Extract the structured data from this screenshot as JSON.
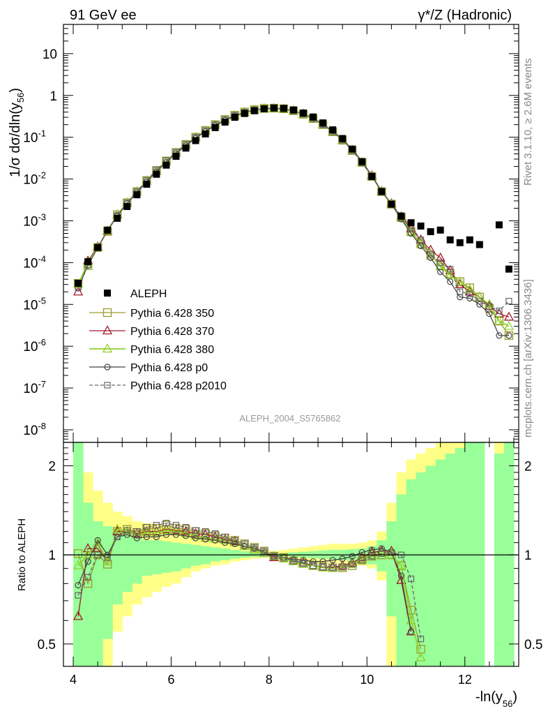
{
  "header": {
    "left": "91 GeV ee",
    "right": "γ*/Z (Hadronic)"
  },
  "side": {
    "rivet": "Rivet 3.1.10, ≥ 2.6M events",
    "mcplots": "mcplots.cern.ch [arXiv:1306.3436]"
  },
  "watermark": "ALEPH_2004_S5765862",
  "colors": {
    "aleph": "#000000",
    "p350": "#9a9a2b",
    "p370": "#a01a2a",
    "p380": "#8ed12b",
    "p0": "#444444",
    "p2010": "#666666",
    "band_inner": "#99ff99",
    "band_outer": "#ffff88"
  },
  "chart_data": [
    {
      "type": "scatter",
      "title": "",
      "ylabel_main": "1/σ  dσ/dln(y",
      "ylabel_sub": "56",
      "ylabel_close": ")",
      "xlim": [
        3.8,
        13.1
      ],
      "ylim": [
        5e-09,
        50
      ],
      "yscale": "log",
      "yticks": [
        {
          "v": 1e-08,
          "base": "10",
          "exp": "-8"
        },
        {
          "v": 1e-07,
          "base": "10",
          "exp": "-7"
        },
        {
          "v": 1e-06,
          "base": "10",
          "exp": "-6"
        },
        {
          "v": 1e-05,
          "base": "10",
          "exp": "-5"
        },
        {
          "v": 0.0001,
          "base": "10",
          "exp": "-4"
        },
        {
          "v": 0.001,
          "base": "10",
          "exp": "-3"
        },
        {
          "v": 0.01,
          "base": "10",
          "exp": "-2"
        },
        {
          "v": 0.1,
          "base": "10",
          "exp": "-1"
        },
        {
          "v": 1,
          "base": "1",
          "exp": ""
        },
        {
          "v": 10,
          "base": "10",
          "exp": ""
        }
      ],
      "legend_position": "lower-left",
      "legend": [
        {
          "key": "aleph",
          "label": "ALEPH"
        },
        {
          "key": "p350",
          "label": "Pythia 6.428 350"
        },
        {
          "key": "p370",
          "label": "Pythia 6.428 370"
        },
        {
          "key": "p380",
          "label": "Pythia 6.428 380"
        },
        {
          "key": "p0",
          "label": "Pythia 6.428 p0"
        },
        {
          "key": "p2010",
          "label": "Pythia 6.428 p2010"
        }
      ],
      "x": [
        4.1,
        4.3,
        4.5,
        4.7,
        4.9,
        5.1,
        5.3,
        5.5,
        5.7,
        5.9,
        6.1,
        6.3,
        6.5,
        6.7,
        6.9,
        7.1,
        7.3,
        7.5,
        7.7,
        7.9,
        8.1,
        8.3,
        8.5,
        8.7,
        8.9,
        9.1,
        9.3,
        9.5,
        9.7,
        9.9,
        10.1,
        10.3,
        10.5,
        10.7,
        10.9,
        11.1,
        11.3,
        11.5,
        11.7,
        11.9,
        12.1,
        12.3,
        12.5,
        12.7,
        12.9
      ],
      "aleph": [
        3.2e-05,
        0.000105,
        0.00023,
        0.0006,
        0.00115,
        0.0022,
        0.0042,
        0.0075,
        0.013,
        0.0215,
        0.035,
        0.055,
        0.083,
        0.12,
        0.17,
        0.23,
        0.3,
        0.37,
        0.43,
        0.48,
        0.5,
        0.49,
        0.45,
        0.38,
        0.305,
        0.22,
        0.15,
        0.093,
        0.052,
        0.026,
        0.0115,
        0.005,
        0.0025,
        0.0013,
        0.0009,
        0.00075,
        0.00055,
        0.0006,
        0.00035,
        0.0003,
        0.00035,
        0.00027,
        null,
        0.0008,
        7e-05
      ],
      "series": [
        {
          "key": "p350",
          "marker": "square",
          "dash": false,
          "values": [
            3.2e-05,
            8.5e-05,
            0.00023,
            0.00056,
            0.0014,
            0.0027,
            0.005,
            0.0092,
            0.016,
            0.027,
            0.043,
            0.067,
            0.1,
            0.145,
            0.2,
            0.265,
            0.335,
            0.4,
            0.455,
            0.49,
            0.495,
            0.48,
            0.43,
            0.355,
            0.28,
            0.2,
            0.135,
            0.085,
            0.048,
            0.025,
            0.0115,
            0.005,
            0.0025,
            0.0012,
            0.00055,
            0.00028,
            0.00015,
            8.5e-05,
            5.5e-05,
            3.5e-05,
            2.5e-05,
            1.5e-05,
            8e-06,
            4e-06,
            1.8e-06
          ]
        },
        {
          "key": "p370",
          "marker": "triangle",
          "dash": false,
          "values": [
            2e-05,
            0.00011,
            0.00024,
            0.00057,
            0.0014,
            0.0027,
            0.005,
            0.009,
            0.0155,
            0.026,
            0.042,
            0.065,
            0.098,
            0.14,
            0.195,
            0.26,
            0.33,
            0.395,
            0.45,
            0.485,
            0.49,
            0.475,
            0.43,
            0.36,
            0.28,
            0.2,
            0.135,
            0.086,
            0.049,
            0.025,
            0.012,
            0.0051,
            0.0026,
            0.00125,
            0.00065,
            0.00035,
            0.0002,
            0.00013,
            6.5e-05,
            3e-05,
            2e-05,
            1.5e-05,
            9e-06,
            6e-06,
            5e-06
          ]
        },
        {
          "key": "p380",
          "marker": "triangle",
          "dash": false,
          "values": [
            3e-05,
            0.0001,
            0.00023,
            0.00058,
            0.0014,
            0.0027,
            0.005,
            0.009,
            0.0155,
            0.026,
            0.042,
            0.064,
            0.097,
            0.14,
            0.195,
            0.26,
            0.33,
            0.395,
            0.45,
            0.485,
            0.49,
            0.475,
            0.43,
            0.355,
            0.28,
            0.2,
            0.135,
            0.086,
            0.049,
            0.025,
            0.0115,
            0.005,
            0.0025,
            0.0012,
            0.00055,
            0.0003,
            0.00016,
            8e-05,
            5e-05,
            3.5e-05,
            2.3e-05,
            1.5e-05,
            1e-05,
            4e-06,
            3e-06
          ]
        },
        {
          "key": "p0",
          "marker": "circle",
          "dash": false,
          "values": [
            2.5e-05,
            8.5e-05,
            0.00023,
            0.00058,
            0.0013,
            0.0026,
            0.0047,
            0.0086,
            0.015,
            0.025,
            0.041,
            0.063,
            0.095,
            0.138,
            0.19,
            0.255,
            0.325,
            0.39,
            0.445,
            0.48,
            0.49,
            0.475,
            0.43,
            0.36,
            0.285,
            0.205,
            0.14,
            0.089,
            0.051,
            0.0265,
            0.012,
            0.0051,
            0.0025,
            0.0011,
            0.0005,
            0.00025,
            0.00013,
            6e-05,
            3.5e-05,
            1.5e-05,
            1.4e-05,
            1e-05,
            6e-06,
            1.8e-06,
            1.8e-06
          ]
        },
        {
          "key": "p2010",
          "marker": "square-small",
          "dash": true,
          "values": [
            2.5e-05,
            8.8e-05,
            0.00023,
            0.00058,
            0.00135,
            0.0027,
            0.005,
            0.0093,
            0.0165,
            0.0275,
            0.044,
            0.068,
            0.1,
            0.145,
            0.2,
            0.265,
            0.335,
            0.4,
            0.455,
            0.485,
            0.495,
            0.48,
            0.43,
            0.355,
            0.28,
            0.2,
            0.135,
            0.086,
            0.048,
            0.0245,
            0.0115,
            0.005,
            0.00255,
            0.0013,
            0.00075,
            0.00035,
            0.00016,
            0.0001,
            7e-05,
            2e-05,
            1.8e-05,
            1.2e-05,
            9e-06,
            7e-06,
            1.2e-05
          ]
        }
      ]
    },
    {
      "type": "scatter",
      "ylabel": "Ratio to ALEPH",
      "xlabel": "-ln(y",
      "xlabel_sub": "56",
      "xlabel_close": ")",
      "xlim": [
        3.8,
        13.1
      ],
      "ylim": [
        0.42,
        2.4
      ],
      "yscale": "log",
      "reference_line": 1,
      "xticks": [
        "4",
        "6",
        "8",
        "10",
        "12"
      ],
      "yticks": [
        "0.5",
        "1",
        "2"
      ],
      "band_edges": [
        4.0,
        4.2,
        4.4,
        4.6,
        4.8,
        5.0,
        5.2,
        5.4,
        5.6,
        5.8,
        6.0,
        6.2,
        6.4,
        6.6,
        6.8,
        7.0,
        7.2,
        7.4,
        7.6,
        7.8,
        8.0,
        8.2,
        8.4,
        8.6,
        8.8,
        9.0,
        9.2,
        9.4,
        9.6,
        9.8,
        10.0,
        10.2,
        10.4,
        10.6,
        10.8,
        11.0,
        11.2,
        11.4,
        11.6,
        11.8,
        12.0,
        12.2,
        12.4,
        12.6,
        12.8,
        13.0
      ],
      "band_outer": [
        [
          0.42,
          2.4
        ],
        [
          0.42,
          1.9
        ],
        [
          0.42,
          1.65
        ],
        [
          0.42,
          1.5
        ],
        [
          0.55,
          1.4
        ],
        [
          0.62,
          1.35
        ],
        [
          0.68,
          1.3
        ],
        [
          0.72,
          1.28
        ],
        [
          0.75,
          1.26
        ],
        [
          0.78,
          1.24
        ],
        [
          0.8,
          1.23
        ],
        [
          0.84,
          1.2
        ],
        [
          0.88,
          1.16
        ],
        [
          0.9,
          1.14
        ],
        [
          0.92,
          1.12
        ],
        [
          0.93,
          1.1
        ],
        [
          0.95,
          1.08
        ],
        [
          0.96,
          1.07
        ],
        [
          0.97,
          1.05
        ],
        [
          0.98,
          1.04
        ],
        [
          0.98,
          1.03
        ],
        [
          0.98,
          1.04
        ],
        [
          0.97,
          1.05
        ],
        [
          0.96,
          1.06
        ],
        [
          0.95,
          1.07
        ],
        [
          0.94,
          1.08
        ],
        [
          0.94,
          1.09
        ],
        [
          0.94,
          1.09
        ],
        [
          0.93,
          1.09
        ],
        [
          0.92,
          1.1
        ],
        [
          0.9,
          1.12
        ],
        [
          0.82,
          1.2
        ],
        [
          0.42,
          1.5
        ],
        [
          0.42,
          1.9
        ],
        [
          0.42,
          2.1
        ],
        [
          0.42,
          2.2
        ],
        [
          0.42,
          2.3
        ],
        [
          0.42,
          2.4
        ],
        [
          0.42,
          2.4
        ],
        [
          0.42,
          2.4
        ],
        [
          0.42,
          2.4
        ],
        [
          0.42,
          2.4
        ],
        [
          null,
          null
        ],
        [
          0.42,
          2.4
        ],
        [
          0.42,
          2.4
        ]
      ],
      "band_inner": [
        [
          0.42,
          2.4
        ],
        [
          0.42,
          1.5
        ],
        [
          0.42,
          1.3
        ],
        [
          0.52,
          1.25
        ],
        [
          0.68,
          1.2
        ],
        [
          0.75,
          1.18
        ],
        [
          0.8,
          1.15
        ],
        [
          0.85,
          1.12
        ],
        [
          0.86,
          1.12
        ],
        [
          0.87,
          1.11
        ],
        [
          0.88,
          1.1
        ],
        [
          0.9,
          1.09
        ],
        [
          0.92,
          1.08
        ],
        [
          0.93,
          1.07
        ],
        [
          0.95,
          1.06
        ],
        [
          0.96,
          1.05
        ],
        [
          0.97,
          1.04
        ],
        [
          0.98,
          1.03
        ],
        [
          0.985,
          1.02
        ],
        [
          0.99,
          1.015
        ],
        [
          0.99,
          1.01
        ],
        [
          0.99,
          1.015
        ],
        [
          0.985,
          1.02
        ],
        [
          0.98,
          1.025
        ],
        [
          0.975,
          1.03
        ],
        [
          0.97,
          1.035
        ],
        [
          0.965,
          1.04
        ],
        [
          0.96,
          1.04
        ],
        [
          0.955,
          1.045
        ],
        [
          0.95,
          1.05
        ],
        [
          0.93,
          1.07
        ],
        [
          0.88,
          1.12
        ],
        [
          0.62,
          1.3
        ],
        [
          0.42,
          1.6
        ],
        [
          0.42,
          1.8
        ],
        [
          0.42,
          1.9
        ],
        [
          0.42,
          2.0
        ],
        [
          0.42,
          2.1
        ],
        [
          0.42,
          2.2
        ],
        [
          0.42,
          2.3
        ],
        [
          0.42,
          2.4
        ],
        [
          0.42,
          2.4
        ],
        [
          null,
          null
        ],
        [
          0.42,
          2.2
        ],
        [
          0.42,
          2.4
        ]
      ],
      "series": [
        {
          "key": "p350",
          "marker": "square",
          "dash": false,
          "values": [
            1.01,
            0.8,
            1.0,
            0.93,
            1.2,
            1.22,
            1.19,
            1.23,
            1.23,
            1.26,
            1.23,
            1.22,
            1.2,
            1.18,
            1.16,
            1.14,
            1.12,
            1.09,
            1.06,
            1.03,
            0.99,
            0.98,
            0.955,
            0.935,
            0.92,
            0.91,
            0.905,
            0.905,
            0.92,
            0.96,
            0.99,
            1.0,
            1.0,
            0.92,
            0.65,
            0.48,
            null,
            null,
            null,
            null,
            null,
            null,
            null,
            null,
            null
          ]
        },
        {
          "key": "p370",
          "marker": "triangle",
          "dash": false,
          "values": [
            0.62,
            1.05,
            1.05,
            0.95,
            1.2,
            1.2,
            1.18,
            1.2,
            1.2,
            1.22,
            1.21,
            1.2,
            1.18,
            1.17,
            1.15,
            1.13,
            1.11,
            1.07,
            1.04,
            1.01,
            0.98,
            0.97,
            0.955,
            0.94,
            0.92,
            0.91,
            0.91,
            0.92,
            0.94,
            0.98,
            1.02,
            1.03,
            1.03,
            0.82,
            0.55,
            null,
            null,
            null,
            null,
            null,
            null,
            null,
            null,
            null,
            null
          ]
        },
        {
          "key": "p380",
          "marker": "triangle",
          "dash": false,
          "values": [
            0.92,
            1.0,
            1.1,
            0.95,
            1.22,
            1.2,
            1.17,
            1.19,
            1.19,
            1.21,
            1.2,
            1.18,
            1.16,
            1.14,
            1.13,
            1.12,
            1.1,
            1.07,
            1.04,
            1.01,
            0.99,
            0.97,
            0.95,
            0.93,
            0.92,
            0.905,
            0.9,
            0.91,
            0.93,
            0.97,
            1.0,
            1.01,
            1.0,
            0.92,
            0.6,
            0.45,
            null,
            null,
            null,
            null,
            null,
            null,
            null,
            null,
            null
          ]
        },
        {
          "key": "p0",
          "marker": "circle",
          "dash": false,
          "values": [
            0.79,
            0.95,
            1.12,
            1.0,
            1.15,
            1.17,
            1.14,
            1.15,
            1.15,
            1.17,
            1.17,
            1.16,
            1.14,
            1.13,
            1.12,
            1.1,
            1.09,
            1.07,
            1.05,
            1.02,
            0.99,
            0.98,
            0.965,
            0.96,
            0.95,
            0.95,
            0.96,
            0.97,
            0.99,
            1.02,
            1.04,
            1.05,
            1.02,
            0.85,
            0.55,
            null,
            null,
            null,
            null,
            null,
            null,
            null,
            null,
            null,
            null
          ]
        },
        {
          "key": "p2010",
          "marker": "square-small",
          "dash": true,
          "values": [
            0.73,
            0.84,
            1.0,
            0.98,
            1.15,
            1.21,
            1.2,
            1.24,
            1.26,
            1.28,
            1.26,
            1.24,
            1.21,
            1.2,
            1.18,
            1.15,
            1.12,
            1.09,
            1.06,
            1.03,
            0.99,
            0.98,
            0.955,
            0.935,
            0.92,
            0.91,
            0.905,
            0.91,
            0.93,
            0.96,
            0.99,
            1.01,
            1.02,
            1.0,
            0.83,
            0.52,
            null,
            null,
            null,
            null,
            null,
            null,
            null,
            null,
            null
          ]
        }
      ]
    }
  ]
}
